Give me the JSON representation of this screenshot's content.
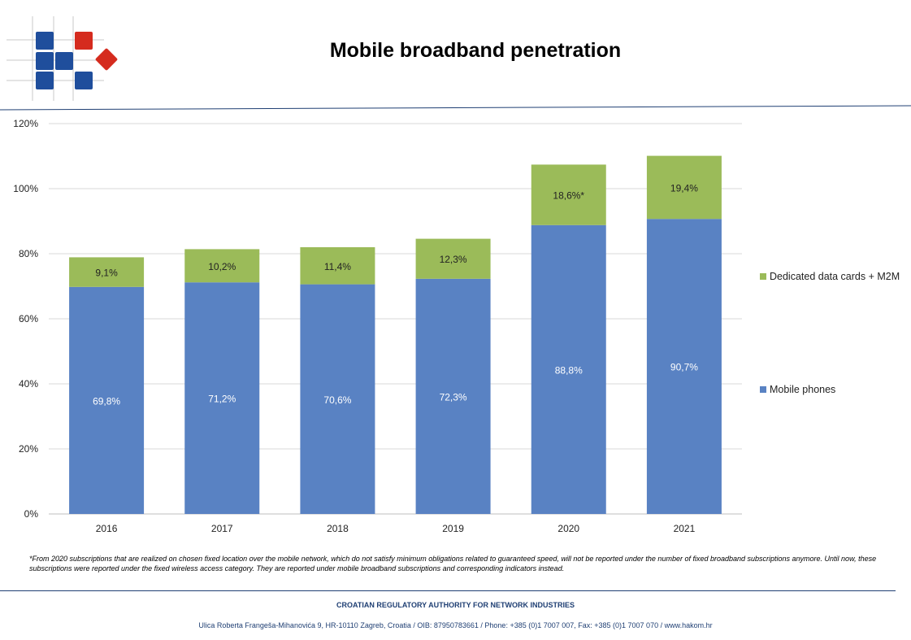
{
  "header": {
    "title": "Mobile broadband penetration"
  },
  "colors": {
    "mobile_phones": "#5982c3",
    "data_cards": "#9bbb59",
    "brand_blue": "#1f4e9c",
    "brand_red": "#d52b1e",
    "rule": "#1f3f73"
  },
  "chart_data": {
    "type": "bar",
    "stacked": true,
    "categories": [
      "2016",
      "2017",
      "2018",
      "2019",
      "2020",
      "2021"
    ],
    "series": [
      {
        "name": "Mobile phones",
        "values": [
          69.8,
          71.2,
          70.6,
          72.3,
          88.8,
          90.7
        ],
        "labels": [
          "69,8%",
          "71,2%",
          "70,6%",
          "72,3%",
          "88,8%",
          "90,7%"
        ]
      },
      {
        "name": "Dedicated data cards + M2M",
        "values": [
          9.1,
          10.2,
          11.4,
          12.3,
          18.6,
          19.4
        ],
        "labels": [
          "9,1%",
          "10,2%",
          "11,4%",
          "12,3%",
          "18,6%*",
          "19,4%"
        ]
      }
    ],
    "yticks": [
      "0%",
      "20%",
      "40%",
      "60%",
      "80%",
      "100%",
      "120%"
    ],
    "ylim": [
      0,
      120
    ],
    "grid": true,
    "legend_position": "right"
  },
  "footnote": "*From 2020 subscriptions that are realized on chosen fixed location over the mobile network, which do not satisfy minimum obligations related to guaranteed speed, will not be reported under the number of fixed broadband subscriptions anymore. Until now, these subscriptions were reported under the fixed wireless access category. They are reported under mobile broadband subscriptions and corresponding indicators instead.",
  "footer": {
    "organization": "CROATIAN REGULATORY AUTHORITY FOR NETWORK INDUSTRIES",
    "address": "Ulica Roberta Frangeša-Mihanovića 9, HR-10110 Zagreb, Croatia / OIB: 87950783661 / Phone: +385 (0)1 7007 007, Fax: +385 (0)1 7007 070 / www.hakom.hr"
  }
}
